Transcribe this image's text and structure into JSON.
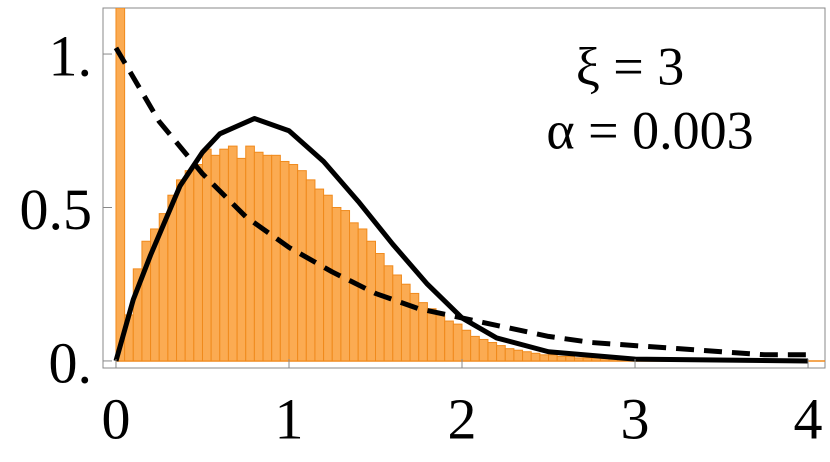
{
  "chart_data": {
    "type": "histogram",
    "bins": [
      0,
      0.05,
      0.1,
      0.15,
      0.2,
      0.25,
      0.3,
      0.35,
      0.4,
      0.45,
      0.5,
      0.55,
      0.6,
      0.65,
      0.7,
      0.75,
      0.8,
      0.85,
      0.9,
      0.95,
      1,
      1.05,
      1.1,
      1.15,
      1.2,
      1.25,
      1.3,
      1.35,
      1.4,
      1.45,
      1.5,
      1.55,
      1.6,
      1.65,
      1.7,
      1.75,
      1.8,
      1.85,
      1.9,
      1.95,
      2,
      2.05,
      2.1,
      2.15,
      2.2,
      2.25,
      2.3,
      2.35,
      2.4,
      2.45,
      2.5,
      2.55,
      2.6,
      2.65,
      2.7,
      2.75,
      2.8,
      2.85,
      2.9,
      2.95,
      3,
      3.05,
      3.1
    ],
    "values": [
      1.15,
      0.15,
      0.3,
      0.39,
      0.43,
      0.48,
      0.54,
      0.59,
      0.62,
      0.64,
      0.69,
      0.67,
      0.69,
      0.7,
      0.66,
      0.7,
      0.68,
      0.67,
      0.67,
      0.65,
      0.64,
      0.62,
      0.59,
      0.56,
      0.54,
      0.5,
      0.49,
      0.45,
      0.43,
      0.39,
      0.35,
      0.31,
      0.28,
      0.25,
      0.22,
      0.19,
      0.17,
      0.15,
      0.13,
      0.12,
      0.1,
      0.08,
      0.07,
      0.06,
      0.05,
      0.04,
      0.035,
      0.03,
      0.025,
      0.02,
      0.02,
      0.015,
      0.015,
      0.01,
      0.01,
      0.01,
      0.008,
      0.006,
      0.005,
      0.005,
      0.004,
      0.003
    ],
    "color": "#fbab52",
    "edge_color": "#f08a1c",
    "curves": [
      {
        "style": "solid",
        "color": "#000000",
        "x": [
          0,
          0.1,
          0.2,
          0.37,
          0.5,
          0.6,
          0.8,
          1,
          1.2,
          1.4,
          1.6,
          1.8,
          2,
          2.2,
          2.5,
          3,
          4
        ],
        "values": [
          0,
          0.2,
          0.345,
          0.57,
          0.68,
          0.74,
          0.79,
          0.75,
          0.65,
          0.52,
          0.38,
          0.25,
          0.14,
          0.075,
          0.03,
          0.006,
          0
        ]
      },
      {
        "style": "dashed",
        "color": "#000000",
        "x": [
          0,
          0.25,
          0.5,
          0.75,
          1,
          1.25,
          1.5,
          1.75,
          2,
          2.25,
          2.5,
          2.75,
          3,
          3.25,
          3.5,
          3.75,
          4
        ],
        "values": [
          1.02,
          0.78,
          0.61,
          0.47,
          0.37,
          0.29,
          0.22,
          0.17,
          0.14,
          0.11,
          0.08,
          0.06,
          0.05,
          0.04,
          0.03,
          0.02,
          0.02
        ]
      }
    ],
    "annotations": [
      "ξ = 3",
      "α = 0.003"
    ],
    "xlim": [
      -0.075,
      4.098
    ],
    "ylim": [
      -0.023,
      1.15
    ],
    "xticks": [
      0,
      1,
      2,
      3,
      4
    ],
    "yticks": [
      {
        "value": 0,
        "label": "0."
      },
      0.5,
      {
        "value": 1,
        "label": "1."
      }
    ]
  }
}
